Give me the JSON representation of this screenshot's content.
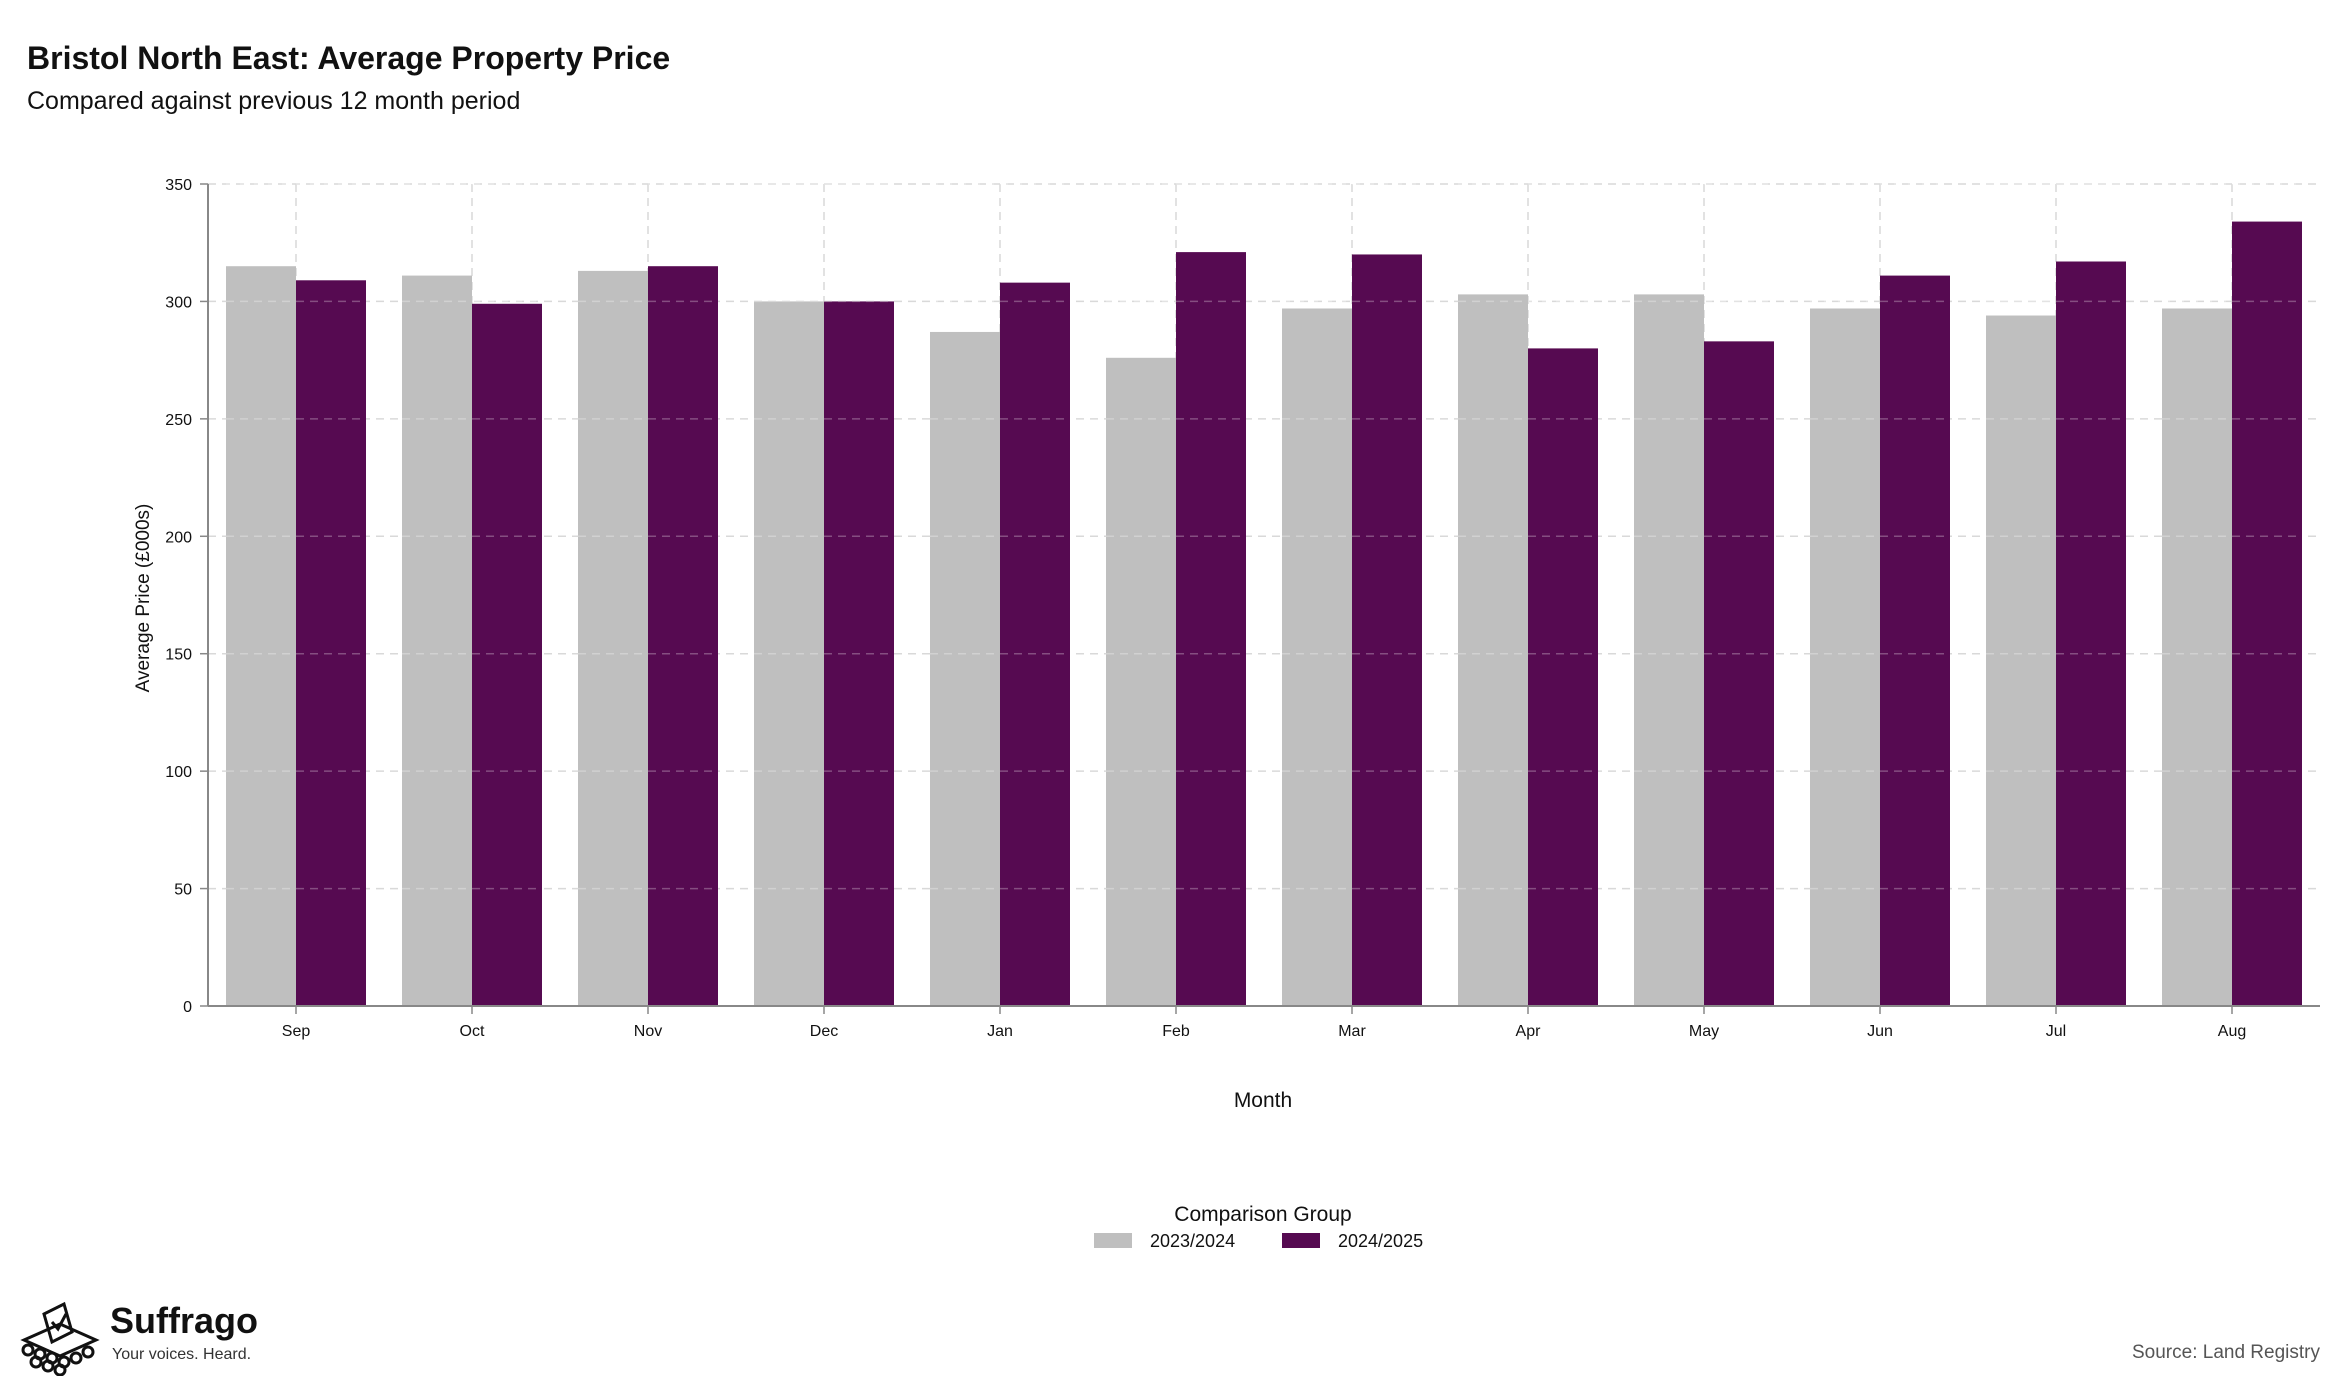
{
  "chart_data": {
    "type": "bar",
    "title": "Bristol North East: Average Property Price",
    "subtitle": "Compared against previous 12 month period",
    "xlabel": "Month",
    "ylabel": "Average Price (£000s)",
    "ylim": [
      0,
      350
    ],
    "yticks": [
      "0",
      "50",
      "100",
      "150",
      "200",
      "250",
      "300",
      "350"
    ],
    "grid": true,
    "categories": [
      "Sep",
      "Oct",
      "Nov",
      "Dec",
      "Jan",
      "Feb",
      "Mar",
      "Apr",
      "May",
      "Jun",
      "Jul",
      "Aug"
    ],
    "series": [
      {
        "name": "2023/2024",
        "color": "#bfbfbf",
        "values": [
          315,
          311,
          313,
          300,
          287,
          276,
          297,
          303,
          303,
          297,
          294,
          297
        ]
      },
      {
        "name": "2024/2025",
        "color": "#560a51",
        "values": [
          309,
          299,
          315,
          300,
          308,
          321,
          320,
          280,
          283,
          311,
          317,
          334
        ]
      }
    ],
    "legend_title": "Comparison Group",
    "legend_position": "bottom"
  },
  "source": "Source: Land Registry",
  "brand": {
    "name": "Suffrago",
    "tagline": "Your voices. Heard.",
    "icon": "ballot-box-icon"
  }
}
